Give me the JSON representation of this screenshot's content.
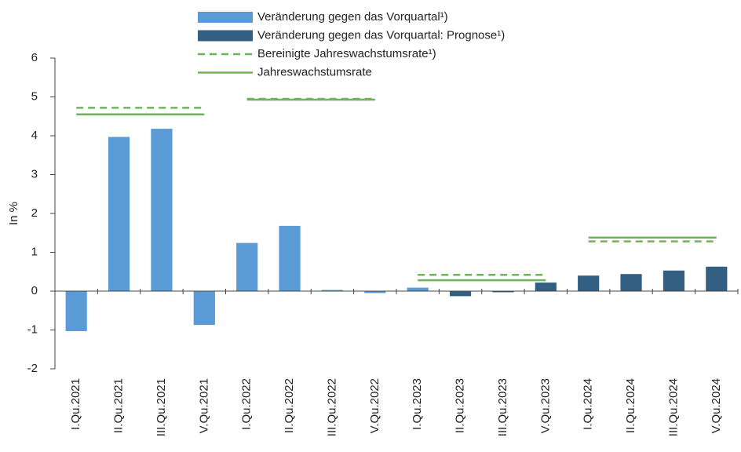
{
  "chart_data": {
    "type": "bar",
    "categories": [
      "I.Qu.2021",
      "II.Qu.2021",
      "III.Qu.2021",
      "V.Qu.2021",
      "I.Qu.2022",
      "II.Qu.2022",
      "III.Qu.2022",
      "V.Qu.2022",
      "I.Qu.2023",
      "II.Qu.2023",
      "III.Qu.2023",
      "V.Qu.2023",
      "I.Qu.2024",
      "II.Qu.2024",
      "III.Qu.2024",
      "V.Qu.2024"
    ],
    "series": [
      {
        "name": "Veränderung gegen das Vorquartal¹)",
        "type": "bar",
        "color": "#5b9bd5",
        "values": [
          -1.03,
          3.97,
          4.18,
          -0.87,
          1.24,
          1.68,
          0.03,
          -0.05,
          0.09,
          null,
          null,
          null,
          null,
          null,
          null,
          null
        ]
      },
      {
        "name": "Veränderung gegen das Vorquartal: Prognose¹)",
        "type": "bar",
        "color": "#335f82",
        "values": [
          null,
          null,
          null,
          null,
          null,
          null,
          null,
          null,
          null,
          -0.13,
          -0.03,
          0.22,
          0.4,
          0.44,
          0.53,
          0.63
        ]
      },
      {
        "name": "Bereinigte Jahreswachstumsrate¹)",
        "type": "line",
        "dashed": true,
        "color": "#70b35e",
        "values": [
          4.72,
          4.72,
          4.72,
          4.72,
          4.95,
          4.95,
          4.95,
          4.95,
          0.42,
          0.42,
          0.42,
          0.42,
          1.28,
          1.28,
          1.28,
          1.28
        ]
      },
      {
        "name": "Jahreswachstumsrate",
        "type": "line",
        "dashed": false,
        "color": "#70b35e",
        "values": [
          4.55,
          4.55,
          4.55,
          4.55,
          4.93,
          4.93,
          4.93,
          4.93,
          0.28,
          0.28,
          0.28,
          0.28,
          1.38,
          1.38,
          1.38,
          1.38
        ]
      }
    ],
    "y_label": "In %",
    "ylim": [
      -2,
      6
    ],
    "yticks": [
      -2,
      -1,
      0,
      1,
      2,
      3,
      4,
      5,
      6
    ]
  }
}
